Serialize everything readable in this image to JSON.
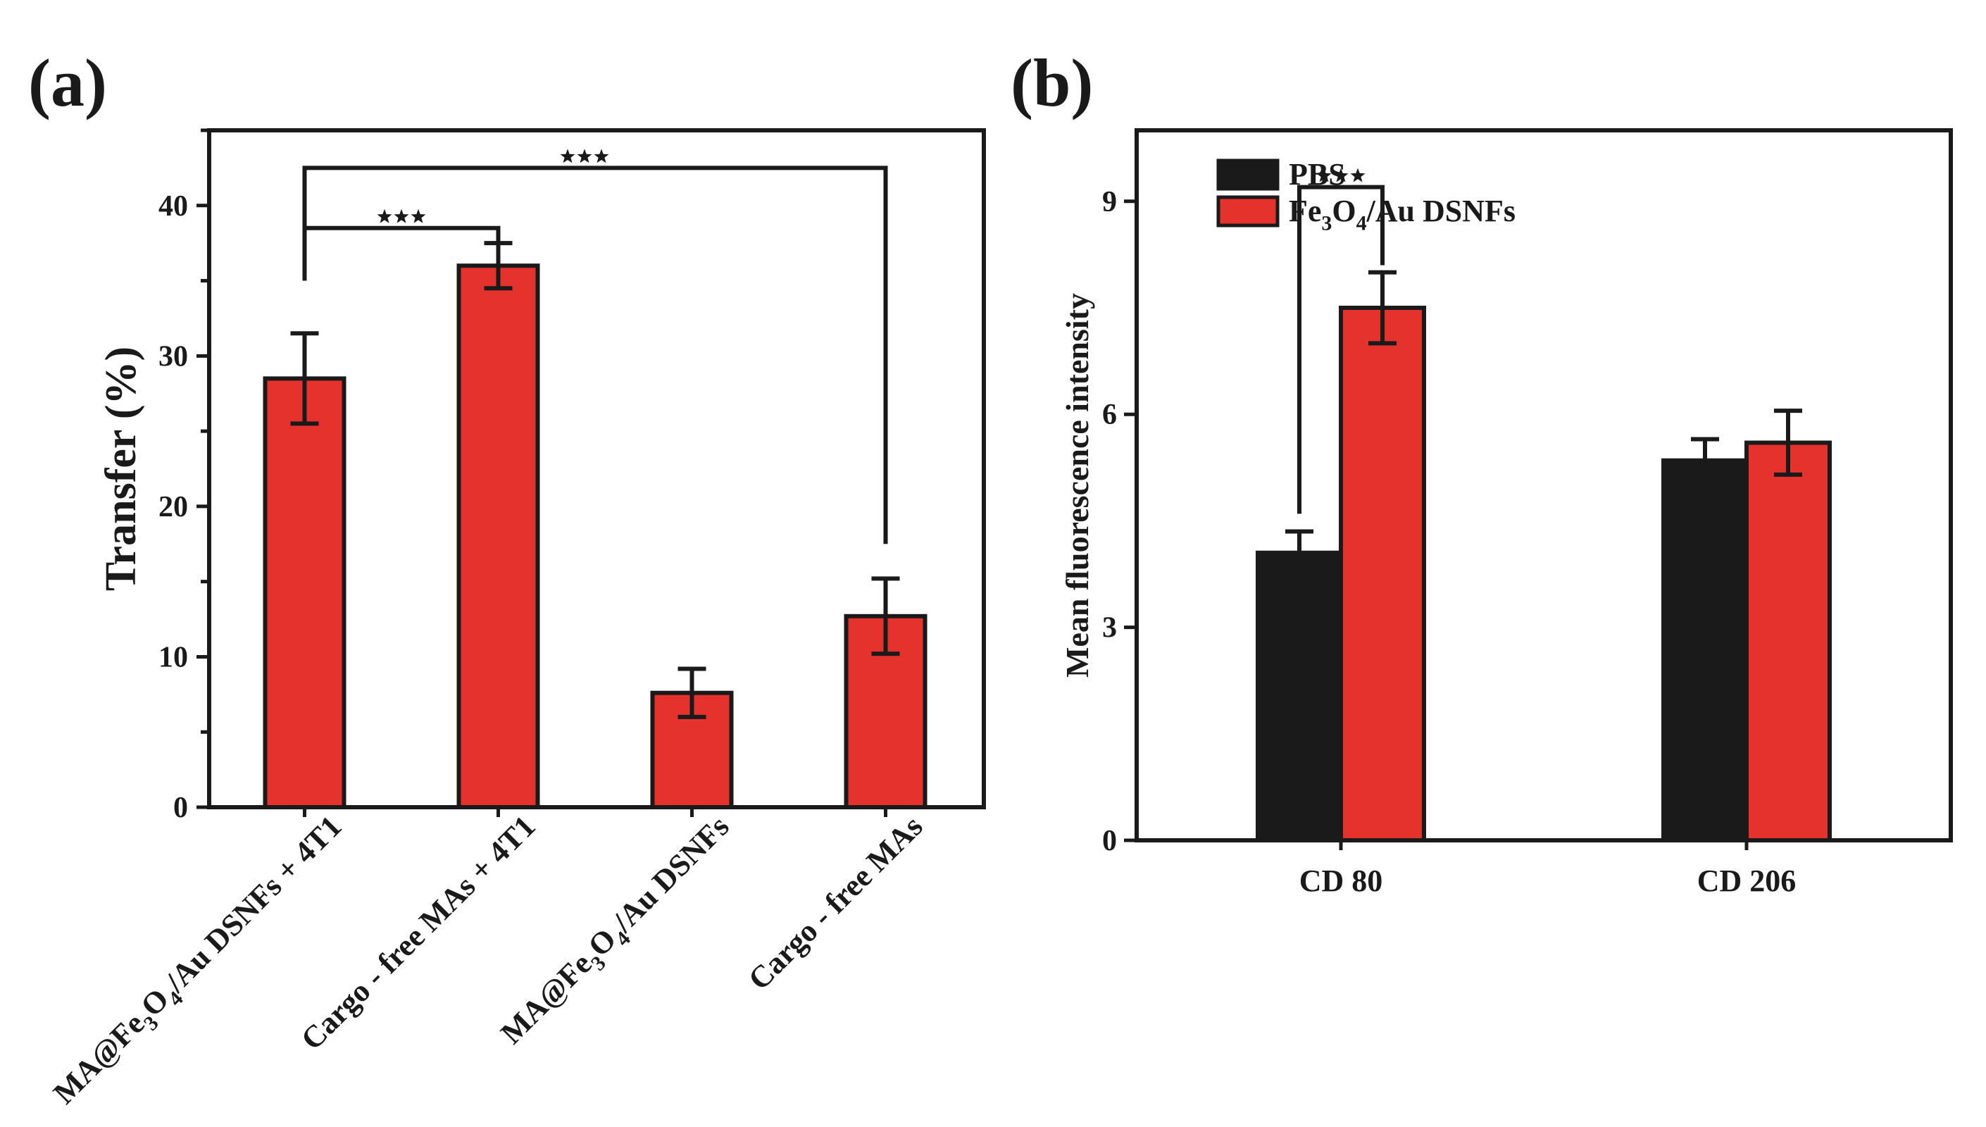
{
  "chart_data": [
    {
      "panel_label": "(a)",
      "type": "bar",
      "title": "",
      "xlabel": "",
      "ylabel": "Transfer (%)",
      "ylim": [
        0,
        45
      ],
      "yticks": [
        0,
        10,
        20,
        30,
        40
      ],
      "categories": [
        {
          "pre": "MA@Fe",
          "s1": "3",
          "m1": "O",
          "s2": "4",
          "post": "/Au DSNFs + 4T1"
        },
        {
          "pre": "Cargo - free MAs + 4T1",
          "s1": "",
          "m1": "",
          "s2": "",
          "post": ""
        },
        {
          "pre": "MA@Fe",
          "s1": "3",
          "m1": "O",
          "s2": "4",
          "post": "/Au DSNFs"
        },
        {
          "pre": "Cargo - free MAs",
          "s1": "",
          "m1": "",
          "s2": "",
          "post": ""
        }
      ],
      "values": [
        28.5,
        36.0,
        7.6,
        12.7
      ],
      "errors": [
        3.0,
        1.5,
        1.6,
        2.5
      ],
      "significance": [
        {
          "from": 0,
          "to": 1,
          "label": "***"
        },
        {
          "from": 0,
          "to": 3,
          "label": "***"
        }
      ],
      "bar_color": "#e5322d"
    },
    {
      "panel_label": "(b)",
      "type": "bar",
      "title": "",
      "xlabel": "",
      "ylabel": "Mean fluorescence intensity",
      "ylim": [
        0,
        10
      ],
      "yticks": [
        0,
        3,
        6,
        9
      ],
      "categories": [
        "CD 80",
        "CD 206"
      ],
      "series": [
        {
          "name": "PBS",
          "legend": {
            "pre": "PBS",
            "s1": "",
            "m1": "",
            "s2": "",
            "post": ""
          },
          "color": "#1a1a1a",
          "values": [
            4.05,
            5.35
          ],
          "errors": [
            0.3,
            0.3
          ]
        },
        {
          "name": "Fe3O4/Au DSNFs",
          "legend": {
            "pre": "Fe",
            "s1": "3",
            "m1": "O",
            "s2": "4",
            "post": "/Au DSNFs"
          },
          "color": "#e5322d",
          "values": [
            7.5,
            5.6
          ],
          "errors": [
            0.5,
            0.45
          ]
        }
      ],
      "significance": [
        {
          "category": 0,
          "from_series": 0,
          "to_series": 1,
          "label": "***"
        }
      ]
    }
  ]
}
